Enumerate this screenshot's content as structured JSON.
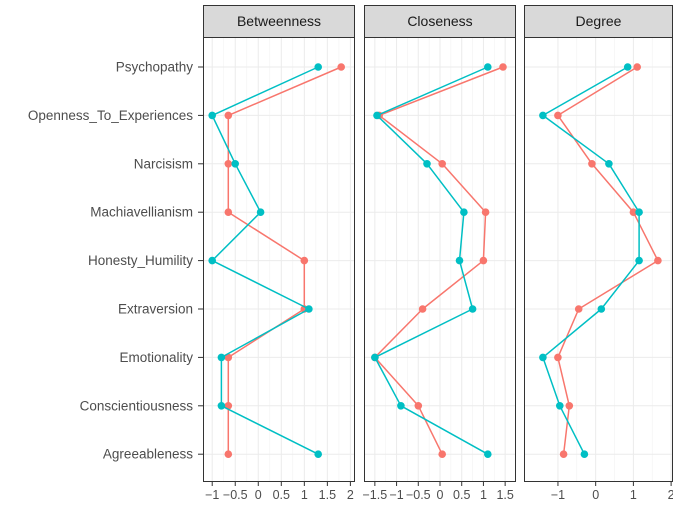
{
  "chart_data": {
    "type": "line",
    "facets": [
      "Betweenness",
      "Closeness",
      "Degree"
    ],
    "categories": [
      "Psychopathy",
      "Openness_To_Experiences",
      "Narcisism",
      "Machiavellianism",
      "Honesty_Humility",
      "Extraversion",
      "Emotionality",
      "Conscientiousness",
      "Agreeableness"
    ],
    "series_colors": [
      "#F8766D",
      "#00BFC4"
    ],
    "panels": [
      {
        "facet": "Betweenness",
        "xlim": [
          -1.2,
          2.1
        ],
        "xticks": [
          -1,
          -0.5,
          0,
          0.5,
          1,
          1.5,
          2
        ],
        "xtick_labels": [
          "−1",
          "−0.5",
          "0",
          "0.5",
          "1",
          "1.5",
          "2"
        ],
        "series": [
          {
            "values": [
              1.8,
              -0.65,
              -0.65,
              -0.65,
              1.0,
              1.0,
              -0.65,
              -0.65,
              -0.65
            ]
          },
          {
            "values": [
              1.3,
              -1.0,
              -0.5,
              0.05,
              -1.0,
              1.1,
              -0.8,
              -0.8,
              1.3
            ]
          }
        ]
      },
      {
        "facet": "Closeness",
        "xlim": [
          -1.75,
          1.75
        ],
        "xticks": [
          -1.5,
          -1,
          -0.5,
          0,
          0.5,
          1,
          1.5
        ],
        "xtick_labels": [
          "−1.5",
          "−1",
          "−0.5",
          "0",
          "0.5",
          "1",
          "1.5"
        ],
        "series": [
          {
            "values": [
              1.45,
              -1.4,
              0.05,
              1.05,
              1.0,
              -0.4,
              -1.5,
              -0.5,
              0.05
            ]
          },
          {
            "values": [
              1.1,
              -1.45,
              -0.3,
              0.55,
              0.45,
              0.75,
              -1.5,
              -0.9,
              1.1
            ]
          }
        ]
      },
      {
        "facet": "Degree",
        "xlim": [
          -1.9,
          2.05
        ],
        "xticks": [
          -1,
          0,
          1,
          2
        ],
        "xtick_labels": [
          "−1",
          "0",
          "1",
          "2"
        ],
        "series": [
          {
            "values": [
              1.1,
              -1.0,
              -0.1,
              1.0,
              1.65,
              -0.45,
              -1.0,
              -0.7,
              -0.85
            ]
          },
          {
            "values": [
              0.85,
              -1.4,
              0.35,
              1.15,
              1.15,
              0.15,
              -1.4,
              -0.95,
              -0.3
            ]
          }
        ]
      }
    ]
  }
}
